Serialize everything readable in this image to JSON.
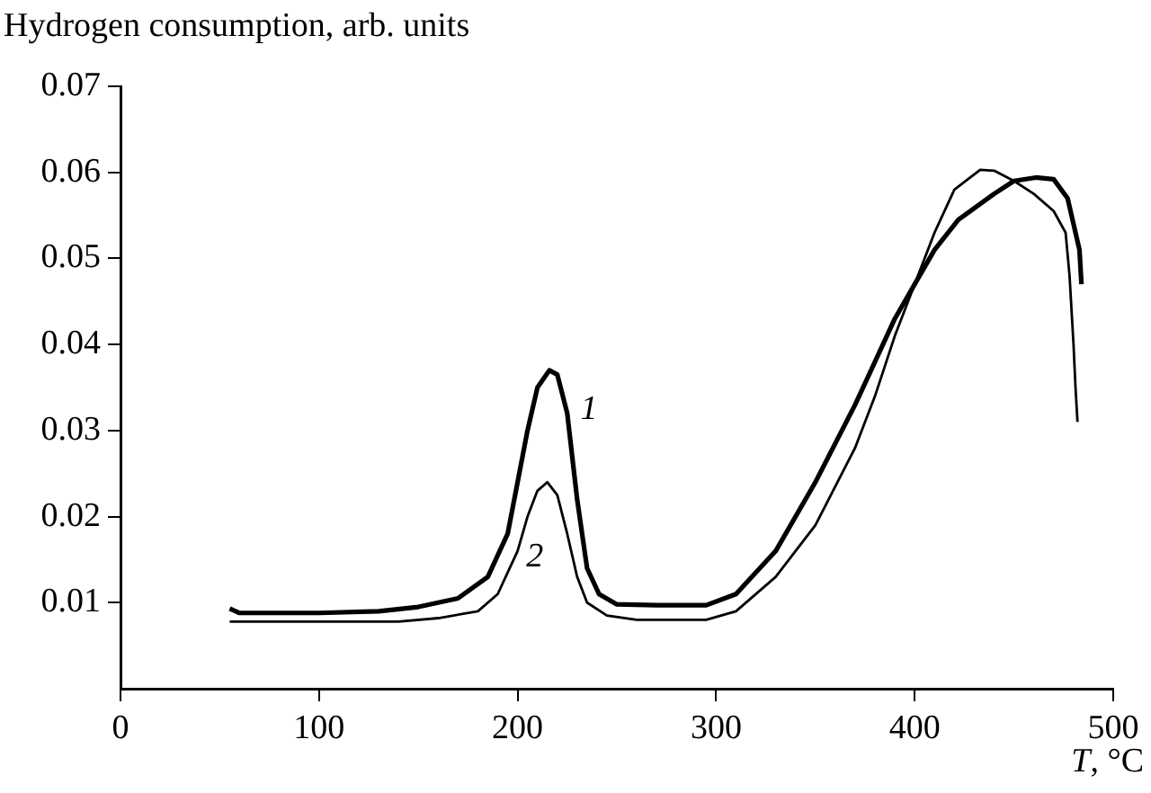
{
  "chart_data": {
    "type": "line",
    "ylabel": "Hydrogen consumption, arb. units",
    "xlabel": "T, °C",
    "xlim": [
      0,
      500
    ],
    "xticks": [
      0,
      100,
      200,
      300,
      400,
      500
    ],
    "ylim": [
      0,
      0.07
    ],
    "yticks": [
      0.01,
      0.02,
      0.03,
      0.04,
      0.05,
      0.06,
      0.07
    ],
    "grid": false,
    "legend": false,
    "marker": "none",
    "line_style": "solid",
    "series": [
      {
        "name": "1",
        "color": "#000000",
        "x": [
          55,
          60,
          100,
          130,
          150,
          170,
          185,
          195,
          205,
          210,
          216,
          220,
          225,
          230,
          235,
          241,
          250,
          270,
          295,
          310,
          330,
          350,
          370,
          380,
          390,
          400,
          410,
          422,
          440,
          450,
          461,
          470,
          477,
          480,
          483,
          484
        ],
        "values": [
          0.0093,
          0.0088,
          0.0088,
          0.009,
          0.0095,
          0.0105,
          0.013,
          0.018,
          0.03,
          0.035,
          0.037,
          0.0365,
          0.032,
          0.022,
          0.014,
          0.011,
          0.0098,
          0.0097,
          0.0097,
          0.011,
          0.016,
          0.024,
          0.033,
          0.038,
          0.043,
          0.047,
          0.051,
          0.0545,
          0.0575,
          0.059,
          0.0594,
          0.0592,
          0.057,
          0.054,
          0.051,
          0.047
        ]
      },
      {
        "name": "2",
        "color": "#000000",
        "x": [
          55,
          100,
          140,
          160,
          180,
          190,
          200,
          205,
          210,
          215,
          220,
          225,
          230,
          235,
          245,
          260,
          295,
          310,
          330,
          350,
          370,
          380,
          390,
          400,
          410,
          420,
          433,
          440,
          450,
          460,
          470,
          476,
          478,
          480,
          481,
          482
        ],
        "values": [
          0.0078,
          0.0078,
          0.0078,
          0.0082,
          0.009,
          0.011,
          0.016,
          0.02,
          0.023,
          0.024,
          0.0225,
          0.018,
          0.013,
          0.01,
          0.0085,
          0.008,
          0.008,
          0.009,
          0.013,
          0.019,
          0.028,
          0.034,
          0.041,
          0.047,
          0.053,
          0.058,
          0.0603,
          0.0602,
          0.059,
          0.0575,
          0.0555,
          0.053,
          0.048,
          0.04,
          0.035,
          0.031
        ]
      }
    ]
  }
}
